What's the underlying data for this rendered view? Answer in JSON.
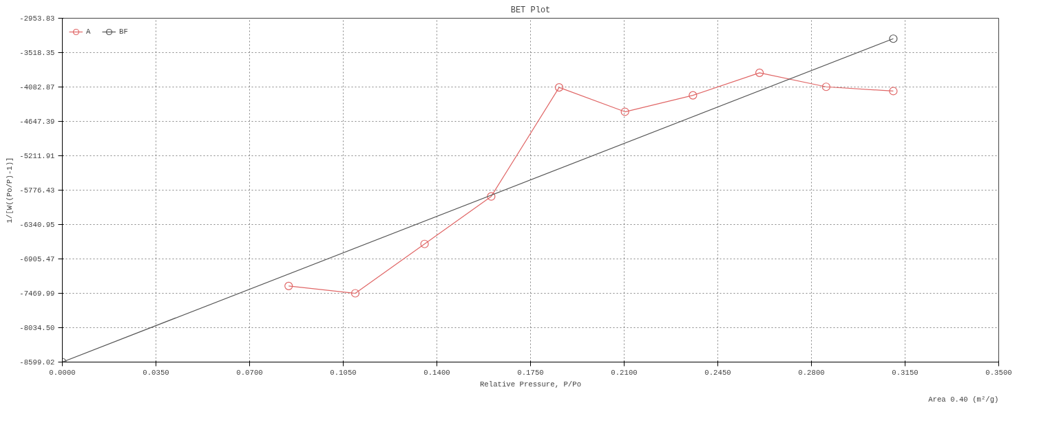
{
  "chart_data": {
    "type": "line",
    "title": "BET Plot",
    "xlabel": "Relative Pressure, P/Po",
    "ylabel": "1/[W((Po/P)-1)]",
    "series": [
      {
        "name": "A",
        "color": "#e06666",
        "x": [
          0.0846,
          0.1095,
          0.1354,
          0.1603,
          0.1857,
          0.2103,
          0.2357,
          0.2606,
          0.2855,
          0.3106
        ],
        "values": [
          -7350,
          -7470,
          -6660,
          -5880,
          -4090,
          -4490,
          -4220,
          -3850,
          -4080,
          -4150
        ]
      },
      {
        "name": "BF",
        "color": "#555555",
        "x": [
          0.0,
          0.3106
        ],
        "values": [
          -8599,
          -3290
        ]
      }
    ],
    "xlim": [
      0,
      0.35
    ],
    "ylim": [
      -8599.02,
      -2953.83
    ],
    "xticks": [
      {
        "value": 0,
        "label": "0.0000"
      },
      {
        "value": 0.035,
        "label": "0.0350"
      },
      {
        "value": 0.07,
        "label": "0.0700"
      },
      {
        "value": 0.105,
        "label": "0.1050"
      },
      {
        "value": 0.14,
        "label": "0.1400"
      },
      {
        "value": 0.175,
        "label": "0.1750"
      },
      {
        "value": 0.21,
        "label": "0.2100"
      },
      {
        "value": 0.245,
        "label": "0.2450"
      },
      {
        "value": 0.28,
        "label": "0.2800"
      },
      {
        "value": 0.315,
        "label": "0.3150"
      },
      {
        "value": 0.35,
        "label": "0.3500"
      }
    ],
    "yticks": [
      -8599.02,
      {
        "value": -8034.5,
        "label": "-8034.50"
      },
      -7469.99,
      -6905.47,
      -6340.95,
      -5776.43,
      -5211.91,
      -4647.39,
      -4082.87,
      -3518.35,
      -2953.83
    ],
    "grid": true,
    "legend": "top left",
    "marker": "circle",
    "line_style": "solid",
    "annotations": [
      "Area 0.40 (m²/g)"
    ]
  }
}
